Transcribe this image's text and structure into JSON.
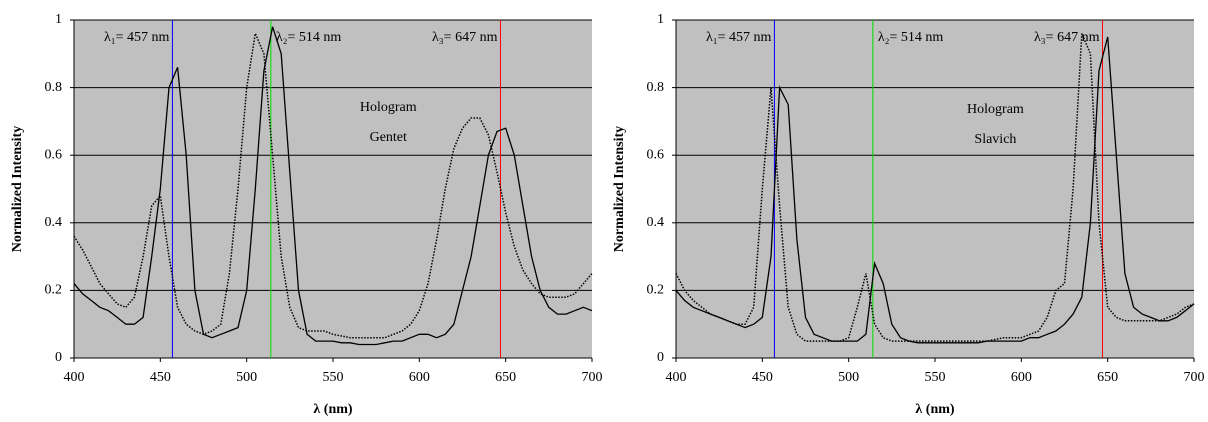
{
  "chart_data": [
    {
      "type": "line",
      "xlabel": "λ (nm)",
      "ylabel": "Normalized Intensity",
      "annotation": [
        "Hologram",
        "Gentet"
      ],
      "x": [
        400,
        405,
        410,
        415,
        420,
        425,
        430,
        435,
        440,
        445,
        450,
        455,
        460,
        465,
        470,
        475,
        480,
        485,
        490,
        495,
        500,
        505,
        510,
        515,
        520,
        525,
        530,
        535,
        540,
        545,
        550,
        555,
        560,
        565,
        570,
        575,
        580,
        585,
        590,
        595,
        600,
        605,
        610,
        615,
        620,
        625,
        630,
        635,
        640,
        645,
        650,
        655,
        660,
        665,
        670,
        675,
        680,
        685,
        690,
        695,
        700
      ],
      "xlim": [
        400,
        700
      ],
      "xticks": [
        400,
        450,
        500,
        550,
        600,
        650,
        700
      ],
      "ylim": [
        0,
        1
      ],
      "yticks": [
        0,
        0.2,
        0.4,
        0.6,
        0.8,
        1
      ],
      "grid": true,
      "background": "#c0c0c0",
      "vlines": [
        {
          "x": 457,
          "color": "#0000ff",
          "label": "λ₁= 457 nm"
        },
        {
          "x": 514,
          "color": "#00dd00",
          "label": "λ₂= 514 nm"
        },
        {
          "x": 647,
          "color": "#ff0000",
          "label": "λ₃= 647 nm"
        }
      ],
      "series": [
        {
          "color": "#000000",
          "style": "solid",
          "values": [
            0.22,
            0.19,
            0.17,
            0.15,
            0.14,
            0.12,
            0.1,
            0.1,
            0.12,
            0.3,
            0.5,
            0.8,
            0.86,
            0.6,
            0.2,
            0.07,
            0.06,
            0.07,
            0.08,
            0.09,
            0.2,
            0.5,
            0.85,
            0.98,
            0.9,
            0.55,
            0.2,
            0.07,
            0.05,
            0.05,
            0.05,
            0.045,
            0.045,
            0.04,
            0.04,
            0.04,
            0.045,
            0.05,
            0.05,
            0.06,
            0.07,
            0.07,
            0.06,
            0.07,
            0.1,
            0.2,
            0.3,
            0.45,
            0.6,
            0.67,
            0.68,
            0.6,
            0.45,
            0.3,
            0.2,
            0.15,
            0.13,
            0.13,
            0.14,
            0.15,
            0.14
          ]
        },
        {
          "color": "#000000",
          "style": "dotted",
          "values": [
            0.36,
            0.32,
            0.27,
            0.22,
            0.19,
            0.16,
            0.15,
            0.18,
            0.3,
            0.45,
            0.48,
            0.3,
            0.15,
            0.1,
            0.08,
            0.07,
            0.08,
            0.1,
            0.25,
            0.5,
            0.8,
            0.96,
            0.9,
            0.6,
            0.3,
            0.15,
            0.09,
            0.08,
            0.08,
            0.08,
            0.07,
            0.065,
            0.06,
            0.06,
            0.06,
            0.06,
            0.06,
            0.07,
            0.08,
            0.1,
            0.14,
            0.22,
            0.35,
            0.5,
            0.62,
            0.68,
            0.71,
            0.71,
            0.66,
            0.55,
            0.43,
            0.33,
            0.26,
            0.22,
            0.19,
            0.18,
            0.18,
            0.18,
            0.19,
            0.22,
            0.25
          ]
        }
      ]
    },
    {
      "type": "line",
      "xlabel": "λ (nm)",
      "ylabel": "Normalized Intensity",
      "annotation": [
        "Hologram",
        "Slavich"
      ],
      "x": [
        400,
        405,
        410,
        415,
        420,
        425,
        430,
        435,
        440,
        445,
        450,
        455,
        460,
        465,
        470,
        475,
        480,
        485,
        490,
        495,
        500,
        505,
        510,
        515,
        520,
        525,
        530,
        535,
        540,
        545,
        550,
        555,
        560,
        565,
        570,
        575,
        580,
        585,
        590,
        595,
        600,
        605,
        610,
        615,
        620,
        625,
        630,
        635,
        640,
        645,
        650,
        655,
        660,
        665,
        670,
        675,
        680,
        685,
        690,
        695,
        700
      ],
      "xlim": [
        400,
        700
      ],
      "xticks": [
        400,
        450,
        500,
        550,
        600,
        650,
        700
      ],
      "ylim": [
        0,
        1
      ],
      "yticks": [
        0,
        0.2,
        0.4,
        0.6,
        0.8,
        1
      ],
      "grid": true,
      "background": "#c0c0c0",
      "vlines": [
        {
          "x": 457,
          "color": "#0000ff",
          "label": "λ₁= 457 nm"
        },
        {
          "x": 514,
          "color": "#00dd00",
          "label": "λ₂= 514 nm"
        },
        {
          "x": 647,
          "color": "#ff0000",
          "label": "λ₃= 647 nm"
        }
      ],
      "series": [
        {
          "color": "#000000",
          "style": "solid",
          "values": [
            0.2,
            0.17,
            0.15,
            0.14,
            0.13,
            0.12,
            0.11,
            0.1,
            0.09,
            0.1,
            0.12,
            0.3,
            0.8,
            0.75,
            0.35,
            0.12,
            0.07,
            0.06,
            0.05,
            0.05,
            0.05,
            0.05,
            0.07,
            0.28,
            0.22,
            0.1,
            0.06,
            0.05,
            0.045,
            0.045,
            0.045,
            0.045,
            0.045,
            0.045,
            0.045,
            0.045,
            0.05,
            0.05,
            0.05,
            0.05,
            0.05,
            0.06,
            0.06,
            0.07,
            0.08,
            0.1,
            0.13,
            0.18,
            0.4,
            0.85,
            0.95,
            0.6,
            0.25,
            0.15,
            0.13,
            0.12,
            0.11,
            0.11,
            0.12,
            0.14,
            0.16
          ]
        },
        {
          "color": "#000000",
          "style": "dotted",
          "values": [
            0.25,
            0.2,
            0.17,
            0.15,
            0.13,
            0.12,
            0.11,
            0.1,
            0.1,
            0.15,
            0.5,
            0.8,
            0.45,
            0.15,
            0.07,
            0.05,
            0.05,
            0.05,
            0.05,
            0.05,
            0.06,
            0.15,
            0.25,
            0.1,
            0.06,
            0.05,
            0.05,
            0.05,
            0.05,
            0.05,
            0.05,
            0.05,
            0.05,
            0.05,
            0.05,
            0.05,
            0.05,
            0.055,
            0.06,
            0.06,
            0.06,
            0.07,
            0.08,
            0.12,
            0.2,
            0.22,
            0.5,
            0.96,
            0.9,
            0.4,
            0.15,
            0.12,
            0.11,
            0.11,
            0.11,
            0.11,
            0.11,
            0.12,
            0.13,
            0.15,
            0.16
          ]
        }
      ]
    }
  ]
}
